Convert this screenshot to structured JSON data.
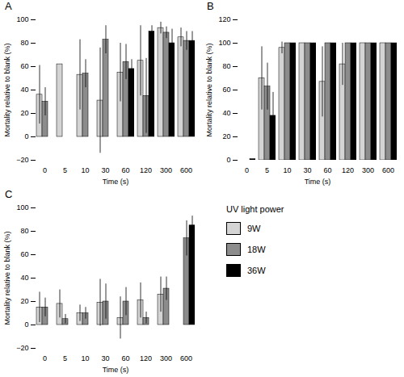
{
  "chart_data": [
    {
      "type": "bar",
      "title": "A",
      "xlabel": "Time (s)",
      "ylabel": "Mortality relative to blank (%)",
      "categories": [
        "0",
        "5",
        "10",
        "30",
        "60",
        "120",
        "300",
        "600"
      ],
      "series": [
        {
          "name": "9W",
          "color": "#d4d4d4",
          "values": [
            36,
            62,
            53,
            31,
            55,
            65,
            93,
            85
          ],
          "errors": [
            25,
            0,
            30,
            45,
            25,
            30,
            5,
            8
          ]
        },
        {
          "name": "18W",
          "color": "#8c8c8c",
          "values": [
            30,
            0,
            54,
            83,
            64,
            35,
            89,
            82
          ],
          "errors": [
            12,
            0,
            12,
            12,
            15,
            32,
            5,
            8
          ]
        },
        {
          "name": "36W",
          "color": "#000000",
          "values": [
            0,
            0,
            0,
            0,
            58,
            90,
            80,
            82
          ],
          "errors": [
            0,
            0,
            0,
            0,
            8,
            5,
            12,
            8
          ]
        }
      ],
      "ylim": [
        -20,
        100
      ],
      "yticks": [
        -20,
        0,
        20,
        40,
        60,
        80,
        100
      ]
    },
    {
      "type": "bar",
      "title": "B",
      "xlabel": "Time (s)",
      "ylabel": "Mortality relative to blank (%)",
      "categories": [
        "0",
        "5",
        "10",
        "30",
        "60",
        "120",
        "300",
        "600"
      ],
      "series": [
        {
          "name": "9W",
          "color": "#d4d4d4",
          "values": [
            0,
            70,
            96,
            100,
            67,
            82,
            100,
            100
          ],
          "errors": [
            0,
            27,
            5,
            0,
            30,
            18,
            0,
            0
          ]
        },
        {
          "name": "18W",
          "color": "#8c8c8c",
          "values": [
            0,
            63,
            100,
            100,
            100,
            100,
            100,
            100
          ],
          "errors": [
            0,
            20,
            0,
            0,
            0,
            0,
            0,
            0
          ]
        },
        {
          "name": "36W",
          "color": "#000000",
          "values": [
            1,
            38,
            100,
            100,
            100,
            100,
            100,
            100
          ],
          "errors": [
            0,
            20,
            0,
            0,
            0,
            0,
            0,
            0
          ]
        }
      ],
      "ylim": [
        0,
        120
      ],
      "yticks": [
        0,
        20,
        40,
        60,
        80,
        100,
        120
      ]
    },
    {
      "type": "bar",
      "title": "C",
      "xlabel": "Time (s)",
      "ylabel": "Mortality relative to blank (%)",
      "categories": [
        "0",
        "5",
        "10",
        "30",
        "60",
        "120",
        "300",
        "600"
      ],
      "series": [
        {
          "name": "9W",
          "color": "#d4d4d4",
          "values": [
            15,
            18,
            10,
            19,
            6,
            21,
            26,
            0
          ],
          "errors": [
            13,
            12,
            7,
            20,
            18,
            15,
            15,
            0
          ]
        },
        {
          "name": "18W",
          "color": "#8c8c8c",
          "values": [
            15,
            5,
            10,
            20,
            20,
            6,
            31,
            74
          ],
          "errors": [
            8,
            4,
            5,
            15,
            12,
            5,
            10,
            15
          ]
        },
        {
          "name": "36W",
          "color": "#000000",
          "values": [
            0,
            0,
            0,
            0,
            0,
            0,
            0,
            85
          ],
          "errors": [
            0,
            0,
            0,
            0,
            0,
            0,
            0,
            8
          ]
        }
      ],
      "ylim": [
        -20,
        100
      ],
      "yticks": [
        -20,
        0,
        20,
        40,
        60,
        80,
        100
      ],
      "legend": "upper left",
      "legend_title": "UV light power"
    }
  ]
}
